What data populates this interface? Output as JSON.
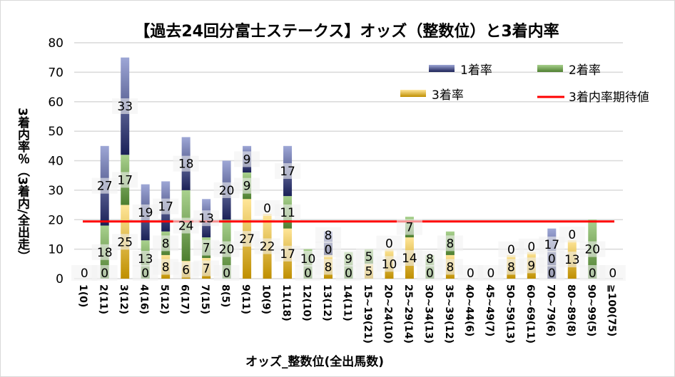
{
  "chart_data": {
    "type": "bar",
    "stacked": true,
    "title": "【過去24回分富士ステークス】オッズ（整数位）と3着内率",
    "xlabel": "オッズ_整数位(全出馬数)",
    "ylabel": "3着内率％（3着内/全出走）",
    "ylim": [
      0,
      80
    ],
    "yticks": [
      0,
      10,
      20,
      30,
      40,
      50,
      60,
      70,
      80
    ],
    "grid": true,
    "legend_position": "top-right",
    "categories": [
      "1(0)",
      "2(11)",
      "3(12)",
      "4(16)",
      "5(12)",
      "6(17)",
      "7(15)",
      "8(5)",
      "9(11)",
      "10(9)",
      "11(18)",
      "12(10)",
      "13(12)",
      "14(11)",
      "15~19(21)",
      "20~24(10)",
      "25~29(14)",
      "30~34(13)",
      "35~39(12)",
      "40~44(6)",
      "45~49(7)",
      "50~59(13)",
      "60~69(11)",
      "70~79(6)",
      "80~89(8)",
      "90~99(5)",
      "≧100(75)"
    ],
    "series": [
      {
        "name": "3着率",
        "color": "#c8961e",
        "values": [
          0,
          0,
          25,
          0,
          8,
          6,
          7,
          0,
          27,
          22,
          17,
          0,
          8,
          0,
          5,
          10,
          14,
          0,
          8,
          0,
          0,
          8,
          9,
          0,
          13,
          0,
          0
        ]
      },
      {
        "name": "2着率",
        "color": "#548235",
        "values": [
          0,
          18,
          17,
          13,
          8,
          24,
          7,
          20,
          9,
          0,
          11,
          10,
          0,
          9,
          5,
          0,
          7,
          8,
          8,
          0,
          0,
          0,
          0,
          0,
          0,
          20,
          0
        ]
      },
      {
        "name": "1着率",
        "color": "#1f2a6b",
        "values": [
          0,
          27,
          33,
          19,
          17,
          18,
          13,
          20,
          9,
          0,
          17,
          0,
          8,
          0,
          0,
          0,
          0,
          0,
          0,
          0,
          0,
          0,
          0,
          17,
          0,
          0,
          0
        ]
      }
    ],
    "reference_line": {
      "name": "3着内率期待値",
      "value": 19.4,
      "color": "#ff0000"
    }
  }
}
